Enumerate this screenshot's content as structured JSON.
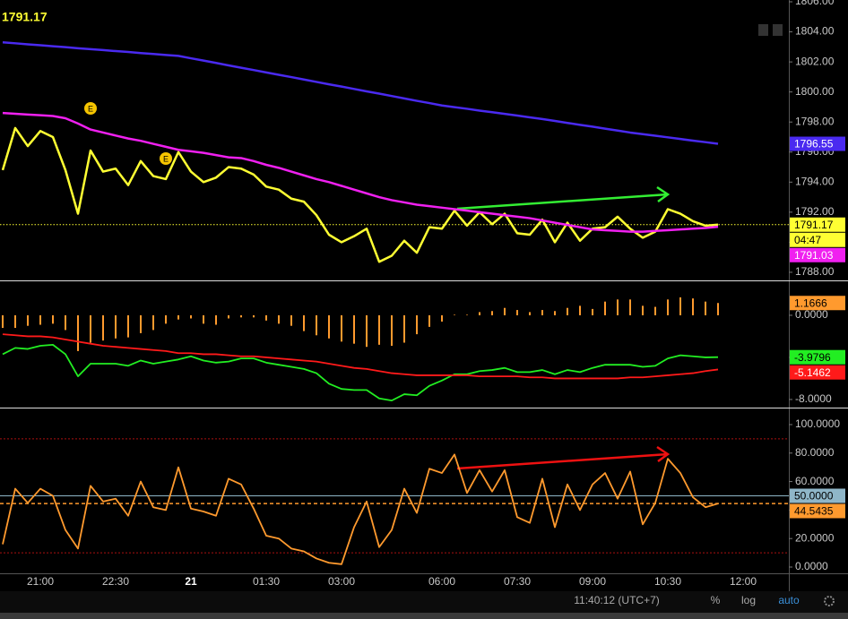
{
  "chart_data": [
    {
      "type": "line",
      "ylim": [
        1787.46,
        1806.12
      ],
      "yticks": [
        {
          "value": 1788,
          "label": "1788.00"
        },
        {
          "value": 1790,
          "label": "1790.00"
        },
        {
          "value": 1792,
          "label": "1792.00"
        },
        {
          "value": 1794,
          "label": "1794.00"
        },
        {
          "value": 1796,
          "label": "1796.00"
        },
        {
          "value": 1798,
          "label": "1798.00"
        },
        {
          "value": 1800,
          "label": "1800.00"
        },
        {
          "value": 1802,
          "label": "1802.00"
        },
        {
          "value": 1804,
          "label": "1804.00"
        },
        {
          "value": 1806,
          "label": "1806.00"
        }
      ],
      "countdown": "04:47",
      "events": [
        {
          "label": "E"
        },
        {
          "label": "E"
        }
      ],
      "series": [
        {
          "color": "#ffff33",
          "price_line": true,
          "countdown": true,
          "values": [
            1794.8,
            1797.6,
            1796.4,
            1797.4,
            1797.0,
            1794.8,
            1791.9,
            1796.1,
            1794.7,
            1794.9,
            1793.8,
            1795.4,
            1794.4,
            1794.2,
            1796.0,
            1794.7,
            1794.0,
            1794.3,
            1795.0,
            1794.9,
            1794.5,
            1793.7,
            1793.5,
            1792.9,
            1792.7,
            1791.8,
            1790.5,
            1790.0,
            1790.4,
            1790.9,
            1788.7,
            1789.1,
            1790.1,
            1789.3,
            1791.0,
            1790.9,
            1792.1,
            1791.1,
            1792.0,
            1791.2,
            1791.9,
            1790.6,
            1790.5,
            1791.5,
            1790.0,
            1791.3,
            1790.1,
            1790.9,
            1791.0,
            1791.7,
            1790.9,
            1790.3,
            1790.7,
            1792.2,
            1791.9,
            1791.4,
            1791.1,
            1791.17,
            null,
            null
          ]
        },
        {
          "color": "#4a2af0",
          "values": [
            1803.3,
            1803.24,
            1803.17,
            1803.11,
            1803.04,
            1802.98,
            1802.91,
            1802.85,
            1802.79,
            1802.72,
            1802.66,
            1802.59,
            1802.53,
            1802.46,
            1802.4,
            1802.24,
            1802.09,
            1801.93,
            1801.77,
            1801.61,
            1801.46,
            1801.3,
            1801.14,
            1800.99,
            1800.83,
            1800.67,
            1800.51,
            1800.36,
            1800.2,
            1800.04,
            1799.89,
            1799.73,
            1799.57,
            1799.41,
            1799.26,
            1799.1,
            1798.99,
            1798.88,
            1798.76,
            1798.65,
            1798.54,
            1798.43,
            1798.31,
            1798.2,
            1798.07,
            1797.94,
            1797.81,
            1797.69,
            1797.56,
            1797.43,
            1797.3,
            1797.19,
            1797.09,
            1796.98,
            1796.87,
            1796.76,
            1796.66,
            1796.55,
            null,
            null
          ]
        },
        {
          "color": "#f020f0",
          "values": [
            1798.6,
            1798.55,
            1798.5,
            1798.45,
            1798.4,
            1798.25,
            1797.9,
            1797.5,
            1797.3,
            1797.1,
            1796.9,
            1796.75,
            1796.55,
            1796.35,
            1796.15,
            1796.05,
            1795.95,
            1795.8,
            1795.65,
            1795.6,
            1795.4,
            1795.15,
            1794.95,
            1794.7,
            1794.45,
            1794.2,
            1794.0,
            1793.75,
            1793.5,
            1793.25,
            1793.0,
            1792.8,
            1792.65,
            1792.5,
            1792.4,
            1792.3,
            1792.2,
            1792.1,
            1792.0,
            1791.9,
            1791.8,
            1791.7,
            1791.6,
            1791.45,
            1791.3,
            1791.15,
            1791.0,
            1790.85,
            1790.8,
            1790.75,
            1790.7,
            1790.7,
            1790.75,
            1790.8,
            1790.85,
            1790.9,
            1790.95,
            1791.03,
            null,
            null
          ]
        }
      ]
    },
    {
      "type": "line",
      "ylim": [
        -8.77,
        3.23
      ],
      "yticks": [
        {
          "value": 0,
          "label": "0.0000"
        },
        {
          "value": -4,
          "label": "-4.0000"
        },
        {
          "value": -8,
          "label": "-8.0000"
        }
      ],
      "series": [
        {
          "type": "bar",
          "color": "#ff9a2e",
          "values": [
            -1.2,
            -1.2,
            -1.0,
            -0.9,
            -0.8,
            -1.4,
            -3.4,
            -2.6,
            -2.4,
            -2.2,
            -2.1,
            -1.7,
            -1.4,
            -0.8,
            -0.4,
            -0.3,
            -0.8,
            -0.9,
            -0.3,
            -0.2,
            -0.2,
            -0.5,
            -0.8,
            -1.0,
            -1.5,
            -1.9,
            -2.2,
            -2.5,
            -2.7,
            -3.0,
            -2.8,
            -2.9,
            -2.6,
            -1.8,
            -1.1,
            -0.6,
            0.05,
            0.05,
            0.3,
            0.4,
            0.7,
            0.5,
            0.3,
            0.5,
            0.4,
            0.7,
            0.9,
            0.6,
            1.3,
            1.5,
            1.5,
            0.9,
            0.8,
            1.5,
            1.7,
            1.6,
            1.3,
            1.1666,
            null,
            null
          ]
        },
        {
          "color": "#22ee22",
          "values": [
            -3.7,
            -3.1,
            -3.2,
            -2.9,
            -2.8,
            -3.7,
            -5.8,
            -4.6,
            -4.6,
            -4.6,
            -4.8,
            -4.3,
            -4.6,
            -4.4,
            -4.2,
            -3.9,
            -4.3,
            -4.5,
            -4.4,
            -4.1,
            -4.1,
            -4.5,
            -4.7,
            -4.9,
            -5.1,
            -5.5,
            -6.5,
            -7.0,
            -7.1,
            -7.1,
            -7.9,
            -8.1,
            -7.5,
            -7.6,
            -6.7,
            -6.2,
            -5.6,
            -5.6,
            -5.3,
            -5.2,
            -5.0,
            -5.4,
            -5.4,
            -5.2,
            -5.6,
            -5.2,
            -5.4,
            -5.0,
            -4.7,
            -4.7,
            -4.7,
            -4.9,
            -4.8,
            -4.1,
            -3.8,
            -3.9,
            -4.0,
            -3.9796,
            null,
            null
          ]
        },
        {
          "color": "#ff1a1a",
          "values": [
            -1.8,
            -1.9,
            -2.0,
            -2.0,
            -2.1,
            -2.3,
            -2.5,
            -2.7,
            -2.9,
            -3.0,
            -3.1,
            -3.2,
            -3.3,
            -3.4,
            -3.6,
            -3.6,
            -3.7,
            -3.7,
            -3.8,
            -3.9,
            -3.9,
            -4.0,
            -4.1,
            -4.2,
            -4.3,
            -4.4,
            -4.6,
            -4.8,
            -5.0,
            -5.1,
            -5.3,
            -5.5,
            -5.6,
            -5.7,
            -5.7,
            -5.7,
            -5.7,
            -5.7,
            -5.8,
            -5.8,
            -5.8,
            -5.8,
            -5.9,
            -5.9,
            -6.0,
            -6.0,
            -6.0,
            -6.0,
            -6.0,
            -6.0,
            -5.9,
            -5.9,
            -5.8,
            -5.7,
            -5.6,
            -5.5,
            -5.3,
            -5.1462,
            null,
            null
          ]
        }
      ]
    },
    {
      "type": "line",
      "ylim": [
        -4.4,
        111.3
      ],
      "yticks": [
        {
          "value": 0,
          "label": "0.0000"
        },
        {
          "value": 20,
          "label": "20.0000"
        },
        {
          "value": 40,
          "label": "40.0000"
        },
        {
          "value": 60,
          "label": "60.0000"
        },
        {
          "value": 80,
          "label": "80.0000"
        },
        {
          "value": 100,
          "label": "100.0000"
        }
      ],
      "levels": [
        {
          "value": 90,
          "color": "#aa1111"
        },
        {
          "value": 50,
          "label": "50.0000",
          "color": "#8fb6c8"
        },
        {
          "value": 10,
          "color": "#aa1111"
        }
      ],
      "categories": [
        null,
        null,
        null,
        "21:00",
        null,
        null,
        null,
        null,
        null,
        "22:30",
        null,
        null,
        null,
        null,
        null,
        "21",
        null,
        null,
        null,
        null,
        null,
        "01:30",
        null,
        null,
        null,
        null,
        null,
        "03:00",
        null,
        null,
        null,
        null,
        null,
        null,
        null,
        "06:00",
        null,
        null,
        null,
        null,
        null,
        "07:30",
        null,
        null,
        null,
        null,
        null,
        "09:00",
        null,
        null,
        null,
        null,
        null,
        "10:30",
        null,
        null,
        null,
        null,
        null,
        "12:00"
      ],
      "series": [
        {
          "color": "#ff9a2e",
          "price_line": true,
          "values": [
            16,
            55,
            45,
            55,
            50,
            26,
            13,
            57,
            46,
            48,
            36,
            60,
            42,
            40,
            70,
            41,
            39,
            36,
            62,
            58,
            41,
            22,
            20,
            13,
            11,
            6,
            3,
            2,
            28,
            46,
            14,
            26,
            55,
            38,
            69,
            66,
            79,
            52,
            68,
            53,
            68,
            35,
            31,
            62,
            28,
            58,
            40,
            58,
            66,
            48,
            67,
            30,
            45,
            76,
            66,
            49,
            42,
            44.5435,
            null,
            null
          ]
        }
      ]
    }
  ],
  "toolbar": {
    "clock": "11:40:12 (UTC+7)",
    "percent": "%",
    "log": "log",
    "auto": "auto"
  }
}
